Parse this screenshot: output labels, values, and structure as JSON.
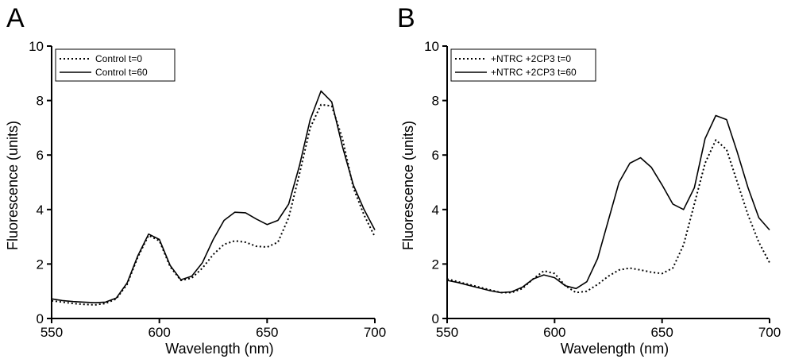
{
  "panels": [
    {
      "letter": "A"
    },
    {
      "letter": "B"
    }
  ],
  "chart_data": [
    {
      "type": "line",
      "panel": "A",
      "xlabel": "Wavelength (nm)",
      "ylabel": "Fluorescence (units)",
      "xlim": [
        550,
        700
      ],
      "ylim": [
        0,
        10
      ],
      "xticks": [
        550,
        600,
        650,
        700
      ],
      "yticks": [
        0,
        2,
        4,
        6,
        8,
        10
      ],
      "grid": false,
      "legend_position": "top-left",
      "series": [
        {
          "name": "Control t=0",
          "style": "dotted",
          "color": "#000000",
          "x": [
            550,
            555,
            560,
            565,
            570,
            575,
            580,
            585,
            590,
            595,
            600,
            605,
            610,
            615,
            620,
            625,
            630,
            635,
            640,
            645,
            650,
            655,
            660,
            665,
            670,
            675,
            680,
            685,
            690,
            695,
            700
          ],
          "y": [
            0.65,
            0.6,
            0.55,
            0.52,
            0.5,
            0.55,
            0.72,
            1.25,
            2.25,
            3.05,
            2.85,
            1.9,
            1.4,
            1.48,
            1.85,
            2.35,
            2.72,
            2.85,
            2.8,
            2.65,
            2.62,
            2.8,
            3.7,
            5.3,
            7.0,
            7.85,
            7.8,
            6.6,
            4.8,
            3.8,
            3.0
          ]
        },
        {
          "name": "Control t=60",
          "style": "solid",
          "color": "#000000",
          "x": [
            550,
            555,
            560,
            565,
            570,
            575,
            580,
            585,
            590,
            595,
            600,
            605,
            610,
            615,
            620,
            625,
            630,
            635,
            640,
            645,
            650,
            655,
            660,
            665,
            670,
            675,
            680,
            685,
            690,
            695,
            700
          ],
          "y": [
            0.72,
            0.66,
            0.62,
            0.6,
            0.58,
            0.6,
            0.75,
            1.3,
            2.3,
            3.1,
            2.9,
            1.95,
            1.42,
            1.55,
            2.05,
            2.9,
            3.6,
            3.9,
            3.88,
            3.65,
            3.45,
            3.6,
            4.2,
            5.6,
            7.3,
            8.35,
            7.95,
            6.3,
            4.9,
            4.0,
            3.25
          ]
        }
      ]
    },
    {
      "type": "line",
      "panel": "B",
      "xlabel": "Wavelength (nm)",
      "ylabel": "Fluorescence (units)",
      "xlim": [
        550,
        700
      ],
      "ylim": [
        0,
        10
      ],
      "xticks": [
        550,
        600,
        650,
        700
      ],
      "yticks": [
        0,
        2,
        4,
        6,
        8,
        10
      ],
      "grid": false,
      "legend_position": "top-left",
      "series": [
        {
          "name": "+NTRC +2CP3 t=0",
          "style": "dotted",
          "color": "#000000",
          "x": [
            550,
            555,
            560,
            565,
            570,
            575,
            580,
            585,
            590,
            595,
            600,
            605,
            610,
            615,
            620,
            625,
            630,
            635,
            640,
            645,
            650,
            655,
            660,
            665,
            670,
            675,
            680,
            685,
            690,
            695,
            700
          ],
          "y": [
            1.45,
            1.35,
            1.25,
            1.15,
            1.05,
            0.95,
            0.95,
            1.1,
            1.45,
            1.75,
            1.65,
            1.2,
            0.95,
            1.0,
            1.25,
            1.55,
            1.78,
            1.85,
            1.78,
            1.7,
            1.65,
            1.85,
            2.7,
            4.2,
            5.7,
            6.55,
            6.2,
            5.0,
            3.8,
            2.8,
            2.05
          ]
        },
        {
          "name": "+NTRC +2CP3 t=60",
          "style": "solid",
          "color": "#000000",
          "x": [
            550,
            555,
            560,
            565,
            570,
            575,
            580,
            585,
            590,
            595,
            600,
            605,
            610,
            615,
            620,
            625,
            630,
            635,
            640,
            645,
            650,
            655,
            660,
            665,
            670,
            675,
            680,
            685,
            690,
            695,
            700
          ],
          "y": [
            1.4,
            1.32,
            1.22,
            1.12,
            1.02,
            0.95,
            0.98,
            1.15,
            1.45,
            1.6,
            1.5,
            1.2,
            1.1,
            1.35,
            2.2,
            3.6,
            5.0,
            5.7,
            5.9,
            5.55,
            4.9,
            4.2,
            4.0,
            4.8,
            6.6,
            7.45,
            7.3,
            6.1,
            4.8,
            3.7,
            3.25
          ]
        }
      ]
    }
  ]
}
